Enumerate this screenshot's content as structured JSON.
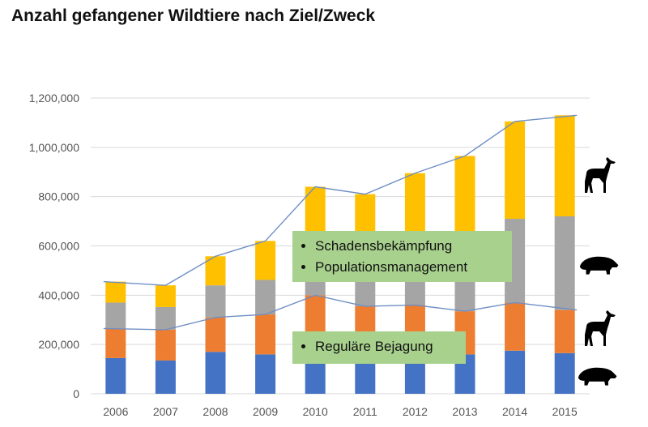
{
  "title": "Anzahl gefangener Wildtiere nach Ziel/Zweck",
  "callouts": {
    "upper": [
      "Schadensbekämpfung",
      "Populationsmanagement"
    ],
    "lower": [
      "Reguläre Bejagung"
    ]
  },
  "icons": [
    "deer-icon",
    "boar-icon",
    "deer-icon",
    "boar-icon"
  ],
  "chart_data": {
    "type": "bar",
    "stacked": true,
    "title": "Anzahl gefangener Wildtiere nach Ziel/Zweck",
    "xlabel": "",
    "ylabel": "",
    "ylim": [
      0,
      1200000
    ],
    "yticks": [
      0,
      200000,
      400000,
      600000,
      800000,
      1000000,
      1200000
    ],
    "ytick_labels": [
      "0",
      "200,000",
      "400,000",
      "600,000",
      "800,000",
      "1,000,000",
      "1,200,000"
    ],
    "grid": true,
    "legend": "none",
    "categories": [
      "2006",
      "2007",
      "2008",
      "2009",
      "2010",
      "2011",
      "2012",
      "2013",
      "2014",
      "2015"
    ],
    "series": [
      {
        "color": "#4472c4",
        "values": [
          145000,
          135000,
          170000,
          160000,
          150000,
          150000,
          155000,
          160000,
          175000,
          165000
        ]
      },
      {
        "color": "#ed7d31",
        "values": [
          120000,
          125000,
          140000,
          162000,
          250000,
          205000,
          205000,
          175000,
          195000,
          175000
        ]
      },
      {
        "color": "#a5a5a5",
        "values": [
          105000,
          92000,
          130000,
          140000,
          120000,
          145000,
          190000,
          305000,
          340000,
          380000
        ]
      },
      {
        "color": "#ffc000",
        "values": [
          85000,
          88000,
          118000,
          158000,
          320000,
          310000,
          345000,
          325000,
          395000,
          410000
        ]
      }
    ],
    "totals_line": {
      "color": "#6f8fc4",
      "values": [
        455000,
        440000,
        558000,
        620000,
        840000,
        810000,
        895000,
        965000,
        1105000,
        1130000
      ]
    },
    "lower_line": {
      "color": "#6f8fc4",
      "values": [
        265000,
        260000,
        310000,
        322000,
        400000,
        355000,
        360000,
        335000,
        370000,
        340000
      ]
    }
  }
}
